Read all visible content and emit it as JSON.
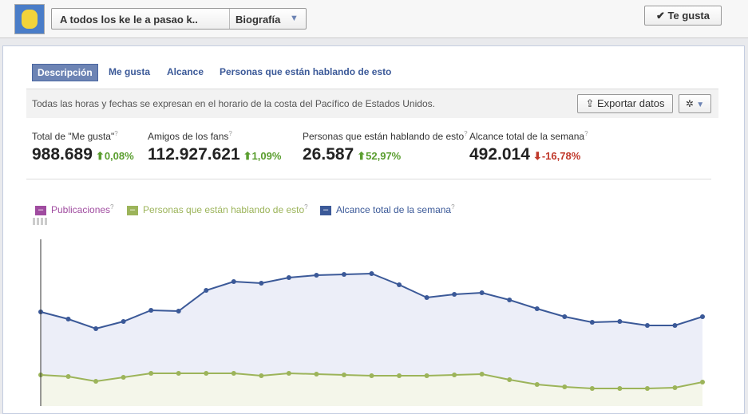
{
  "topbar": {
    "page_name": "A todos los ke le a pasao k..",
    "view": "Biografía",
    "like_button": "Te gusta"
  },
  "tabs": [
    "Descripción",
    "Me gusta",
    "Alcance",
    "Personas que están hablando de esto"
  ],
  "notice": "Todas las horas y fechas se expresan en el horario de la costa del Pacífico de Estados Unidos.",
  "export_button": "Exportar datos",
  "help_mark": "?",
  "stats": [
    {
      "label": "Total de \"Me gusta\"",
      "value": "988.689",
      "change": "0,08%",
      "direction": "up"
    },
    {
      "label": "Amigos de los fans",
      "value": "112.927.621",
      "change": "1,09%",
      "direction": "up"
    },
    {
      "label": "Personas que están hablando de esto",
      "value": "26.587",
      "change": "52,97%",
      "direction": "up"
    },
    {
      "label": "Alcance total de la semana",
      "value": "492.014",
      "change": "-16,78%",
      "direction": "down"
    }
  ],
  "chart_data": {
    "type": "line",
    "ylim": [
      0,
      104.5
    ],
    "series": [
      {
        "name": "Publicaciones",
        "color": "#a04ca0"
      },
      {
        "name": "Personas que están hablando de esto",
        "color": "#9cb45a",
        "fill": "#f4f6ea",
        "values": [
          19.5,
          18.5,
          15.5,
          18,
          20.5,
          20.5,
          20.5,
          20.5,
          19,
          20.5,
          20,
          19.5,
          19,
          19,
          19,
          19.5,
          20,
          16.5,
          13.5,
          12,
          11,
          11,
          11,
          11.5,
          15
        ]
      },
      {
        "name": "Alcance total de la semana",
        "color": "#3b5998",
        "fill": "#eceef8",
        "values": [
          59,
          54.5,
          48.5,
          53,
          60,
          59.5,
          72.5,
          78,
          77,
          80.5,
          82,
          82.5,
          83,
          76,
          68,
          70,
          71,
          66.5,
          61,
          56,
          52.5,
          53,
          50.5,
          50.5,
          56
        ]
      }
    ]
  }
}
